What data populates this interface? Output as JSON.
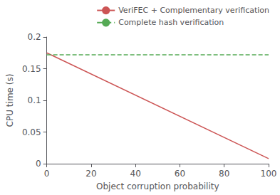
{
  "chart_data": {
    "type": "line",
    "xlabel": "Object corruption probability",
    "ylabel": "CPU time (s)",
    "x": [
      0,
      100
    ],
    "series": [
      {
        "name": "VeriFEC + Complementary verification",
        "color": "#cc5555",
        "values": [
          0.175,
          0.008
        ],
        "line_style": "solid"
      },
      {
        "name": "Complete hash verification",
        "color": "#55aa55",
        "values": [
          0.172,
          0.172
        ],
        "line_style": "dashed"
      }
    ],
    "xlim": [
      0,
      100
    ],
    "xticks": [
      0,
      20,
      40,
      60,
      80,
      100
    ],
    "ylim": [
      0,
      0.2
    ],
    "yticks": [
      0,
      0.05,
      0.1,
      0.15,
      0.2
    ],
    "grid": false,
    "legend": "upper right"
  }
}
